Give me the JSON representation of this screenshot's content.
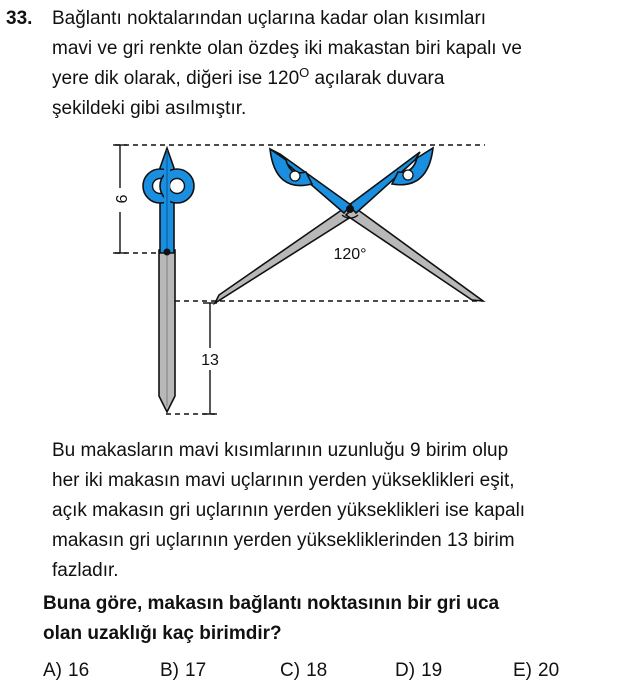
{
  "question": {
    "number": "33.",
    "stem_line1": "Bağlantı noktalarından uçlarına kadar olan kısımları",
    "stem_line2": "mavi ve gri renkte olan özdeş iki makastan biri kapalı ve",
    "stem_line3_before": "yere dik olarak, diğeri ise 120",
    "stem_line3_sup": "O",
    "stem_line3_after": " açılarak duvara",
    "stem_line4": "şekildeki gibi asılmıştır.",
    "info_line1": "Bu makasların mavi kısımlarının uzunluğu 9 birim olup",
    "info_line2": "her iki makasın mavi uçlarının yerden yükseklikleri eşit,",
    "info_line3": "açık makasın gri uçlarının yerden yükseklikleri ise kapalı",
    "info_line4": "makasın gri uçlarının yerden yüksekliklerinden 13 birim",
    "info_line5": "fazladır.",
    "prompt_line1": "Buna göre, makasın bağlantı noktasının bir gri uca",
    "prompt_line2": "olan uzaklığı kaç birimdir?"
  },
  "figure": {
    "label_blue_length": "9",
    "label_height_diff": "13",
    "label_angle": "120°",
    "colors": {
      "blue": "#1a8fe0",
      "gray": "#b8b8b8",
      "outline": "#111111"
    }
  },
  "options": [
    {
      "letter": "A)",
      "value": "16"
    },
    {
      "letter": "B)",
      "value": "17"
    },
    {
      "letter": "C)",
      "value": "18"
    },
    {
      "letter": "D)",
      "value": "19"
    },
    {
      "letter": "E)",
      "value": "20"
    }
  ]
}
